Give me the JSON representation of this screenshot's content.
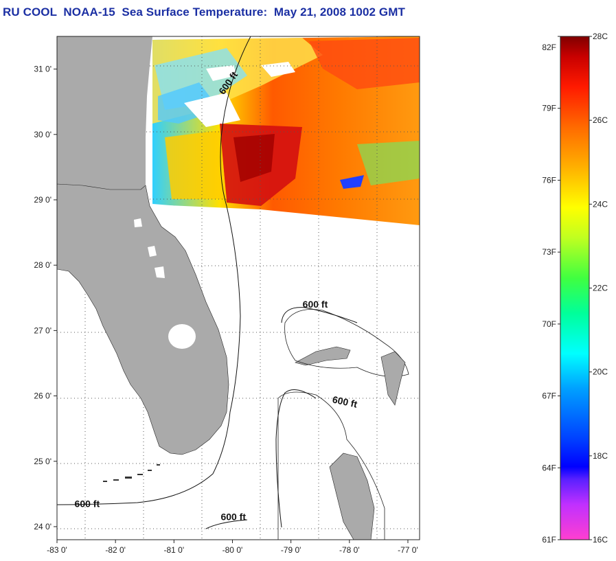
{
  "title": "RU COOL  NOAA-15  Sea Surface Temperature:  May 21, 2008 1002 GMT",
  "map": {
    "lon_range": [
      -83,
      -76.8
    ],
    "lat_range": [
      23.8,
      31.5
    ],
    "lon_ticks": [
      {
        "value": -83,
        "label": "-83 0'"
      },
      {
        "value": -82,
        "label": "-82 0'"
      },
      {
        "value": -81,
        "label": "-81 0'"
      },
      {
        "value": -80,
        "label": "-80 0'"
      },
      {
        "value": -79,
        "label": "-79 0'"
      },
      {
        "value": -78,
        "label": "-78 0'"
      },
      {
        "value": -77,
        "label": "-77 0'"
      }
    ],
    "lat_ticks": [
      {
        "value": 31,
        "label": "31 0'"
      },
      {
        "value": 30,
        "label": "30 0'"
      },
      {
        "value": 29,
        "label": "29 0'"
      },
      {
        "value": 28,
        "label": "28 0'"
      },
      {
        "value": 27,
        "label": "27 0'"
      },
      {
        "value": 26,
        "label": "26 0'"
      },
      {
        "value": 25,
        "label": "25 0'"
      },
      {
        "value": 24,
        "label": "24 0'"
      }
    ],
    "grid": "dotted",
    "land_color": "#aaaaaa",
    "contour_labels": [
      {
        "text": "600 ft",
        "lon": -80.15,
        "lat": 30.6
      },
      {
        "text": "600 ft",
        "lon": -78.8,
        "lat": 27.35
      },
      {
        "text": "600 ft",
        "lon": -78.3,
        "lat": 25.9
      },
      {
        "text": "600 ft",
        "lon": -82.7,
        "lat": 24.3
      },
      {
        "text": "600 ft",
        "lon": -80.2,
        "lat": 24.1
      }
    ]
  },
  "colorbar": {
    "fahrenheit_labels": [
      "82F",
      "79F",
      "76F",
      "73F",
      "70F",
      "67F",
      "64F",
      "61F"
    ],
    "celsius_labels": [
      "28C",
      "26C",
      "24C",
      "22C",
      "20C",
      "18C",
      "16C"
    ],
    "range_c": [
      16,
      28
    ],
    "colors": [
      "#ff40c0",
      "#8000ff",
      "#0000ff",
      "#00ffff",
      "#00ff80",
      "#ffff00",
      "#ff8000",
      "#ff0000",
      "#800000"
    ]
  }
}
